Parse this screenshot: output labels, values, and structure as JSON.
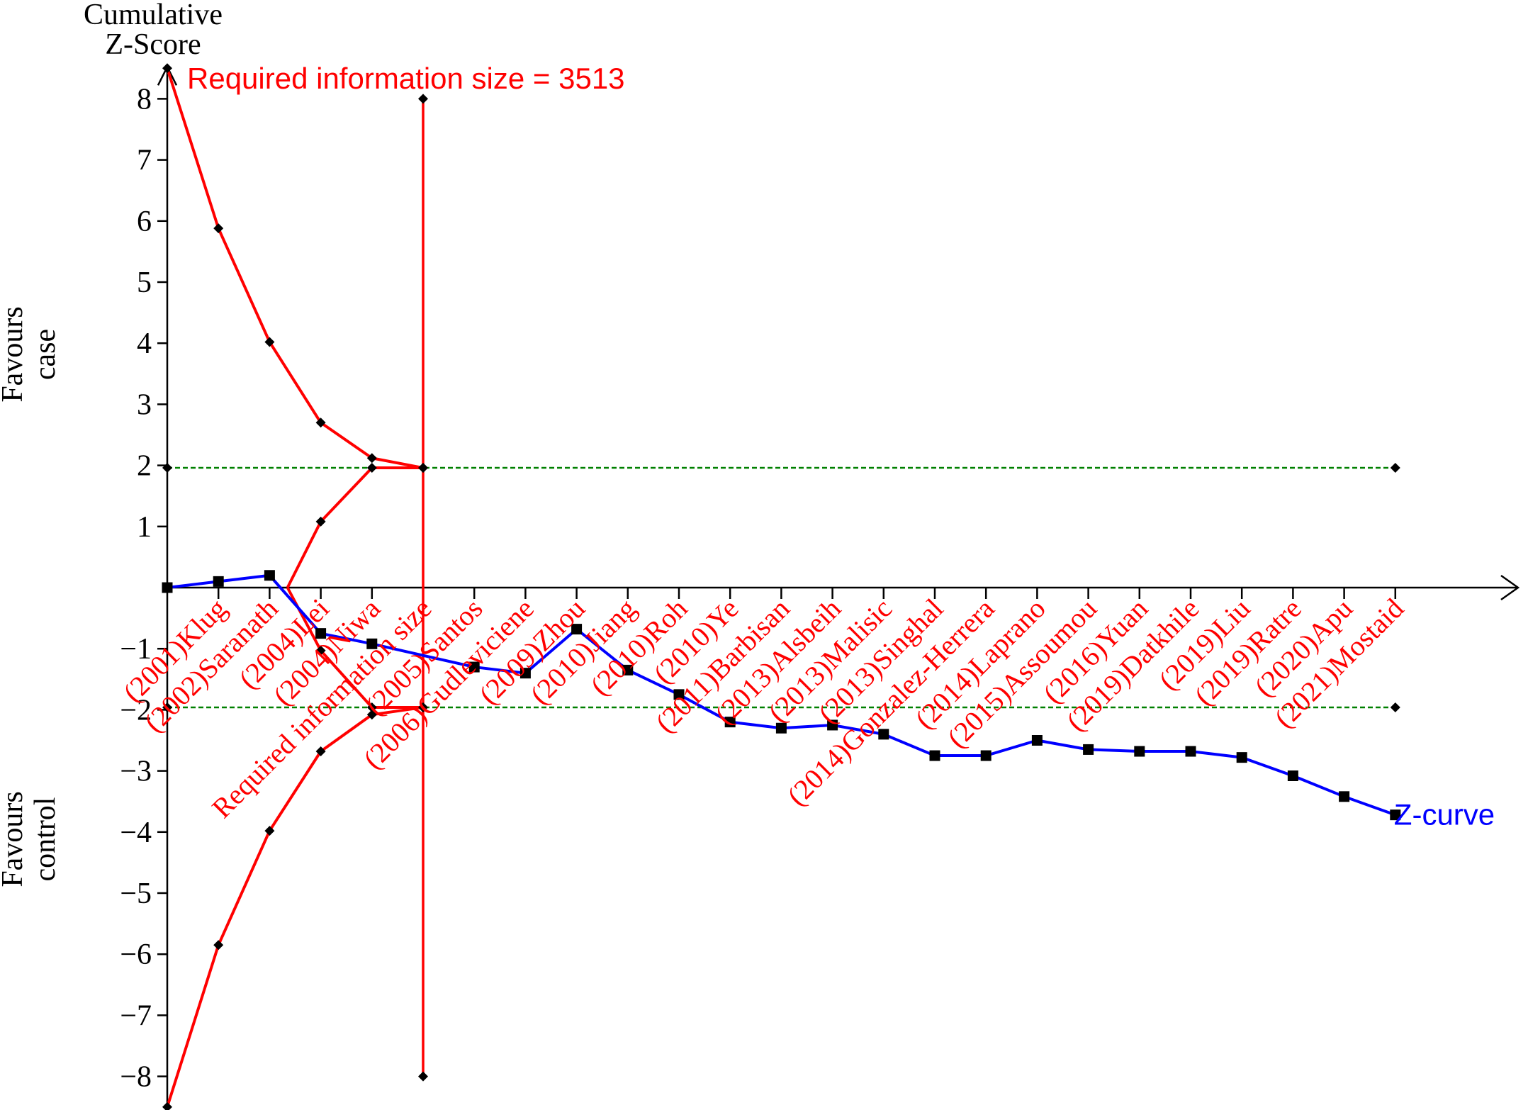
{
  "chart_data": {
    "type": "line",
    "title": "",
    "ylabel": "Cumulative Z-Score",
    "ylabel_lines": [
      "Cumulative",
      "Z-Score"
    ],
    "upper_label_lines": [
      "Favours",
      "case"
    ],
    "lower_label_lines": [
      "Favours",
      "control"
    ],
    "ylim": [
      -8.5,
      8.5
    ],
    "y_ticks": [
      -8,
      -7,
      -6,
      -5,
      -4,
      -3,
      -2,
      -1,
      1,
      2,
      3,
      4,
      5,
      6,
      7,
      8
    ],
    "y_tick_labels": [
      "−8",
      "−7",
      "−6",
      "−5",
      "−4",
      "−3",
      "−2",
      "−1",
      "1",
      "2",
      "3",
      "4",
      "5",
      "6",
      "7",
      "8"
    ],
    "x_positions": 25,
    "study_labels": [
      {
        "label": "(2001)Klug",
        "pos": 1
      },
      {
        "label": "(2002)Saranath",
        "pos": 2
      },
      {
        "label": "(2004)Lei",
        "pos": 3
      },
      {
        "label": "(2004)Niwa",
        "pos": 4
      },
      {
        "label": "Required information size",
        "pos": 5
      },
      {
        "label": "(2005)Santos",
        "pos": 6
      },
      {
        "label": "(2006)Gudleviciene",
        "pos": 7
      },
      {
        "label": "(2009)Zhou",
        "pos": 8
      },
      {
        "label": "(2010)Jiang",
        "pos": 9
      },
      {
        "label": "(2010)Roh",
        "pos": 10
      },
      {
        "label": "(2010)Ye",
        "pos": 11
      },
      {
        "label": "(2011)Barbisan",
        "pos": 12
      },
      {
        "label": "(2013)Alsbeih",
        "pos": 13
      },
      {
        "label": "(2013)Malisic",
        "pos": 14
      },
      {
        "label": "(2013)Singhal",
        "pos": 15
      },
      {
        "label": "(2014)Gonzalez-Herrera",
        "pos": 16
      },
      {
        "label": "(2014)Laprano",
        "pos": 17
      },
      {
        "label": "(2015)Assoumou",
        "pos": 18
      },
      {
        "label": "(2016)Yuan",
        "pos": 19
      },
      {
        "label": "(2019)Datkhile",
        "pos": 20
      },
      {
        "label": "(2019)Liu",
        "pos": 21
      },
      {
        "label": "(2019)Ratre",
        "pos": 22
      },
      {
        "label": "(2020)Apu",
        "pos": 23
      },
      {
        "label": "(2021)Mostaid",
        "pos": 24
      }
    ],
    "series": [
      {
        "name": "Z-curve",
        "color": "#0000ff",
        "marker": "square",
        "x": [
          0,
          1,
          2,
          3,
          4,
          6,
          7,
          8,
          9,
          10,
          11,
          12,
          13,
          14,
          15,
          16,
          17,
          18,
          19,
          20,
          21,
          22,
          23,
          24
        ],
        "y": [
          0,
          0.1,
          0.2,
          -0.75,
          -0.92,
          -1.3,
          -1.4,
          -0.68,
          -1.35,
          -1.75,
          -2.2,
          -2.3,
          -2.25,
          -2.4,
          -2.75,
          -2.75,
          -2.5,
          -2.65,
          -2.68,
          -2.68,
          -2.78,
          -3.08,
          -3.42,
          -3.72
        ]
      },
      {
        "name": "upper-efficacy-boundary",
        "color": "#ff0000",
        "x": [
          0,
          1,
          2,
          3,
          4,
          5
        ],
        "y": [
          8.5,
          5.88,
          4.02,
          2.7,
          2.12,
          1.96
        ]
      },
      {
        "name": "lower-efficacy-boundary",
        "color": "#ff0000",
        "x": [
          0,
          1,
          2,
          3,
          4,
          5
        ],
        "y": [
          -8.5,
          -5.85,
          -3.98,
          -2.68,
          -2.08,
          -1.96
        ]
      },
      {
        "name": "upper-futility-boundary",
        "color": "#ff0000",
        "x": [
          2.35,
          3,
          4,
          5
        ],
        "y": [
          0,
          1.08,
          1.96,
          1.96
        ]
      },
      {
        "name": "lower-futility-boundary",
        "color": "#ff0000",
        "x": [
          2.35,
          3,
          4,
          5
        ],
        "y": [
          0,
          -1.03,
          -1.96,
          -1.96
        ]
      }
    ],
    "conventional_boundary": {
      "value": 1.96,
      "color": "#008000",
      "style": "dashed",
      "x": [
        0,
        24
      ]
    },
    "required_information_size": {
      "label": "Required information size = 3513",
      "x": 5,
      "y_range": [
        -8,
        8
      ],
      "color": "#ff0000"
    },
    "curve_label": {
      "text": "Z-curve",
      "color": "#0000ff"
    },
    "grid": false
  }
}
